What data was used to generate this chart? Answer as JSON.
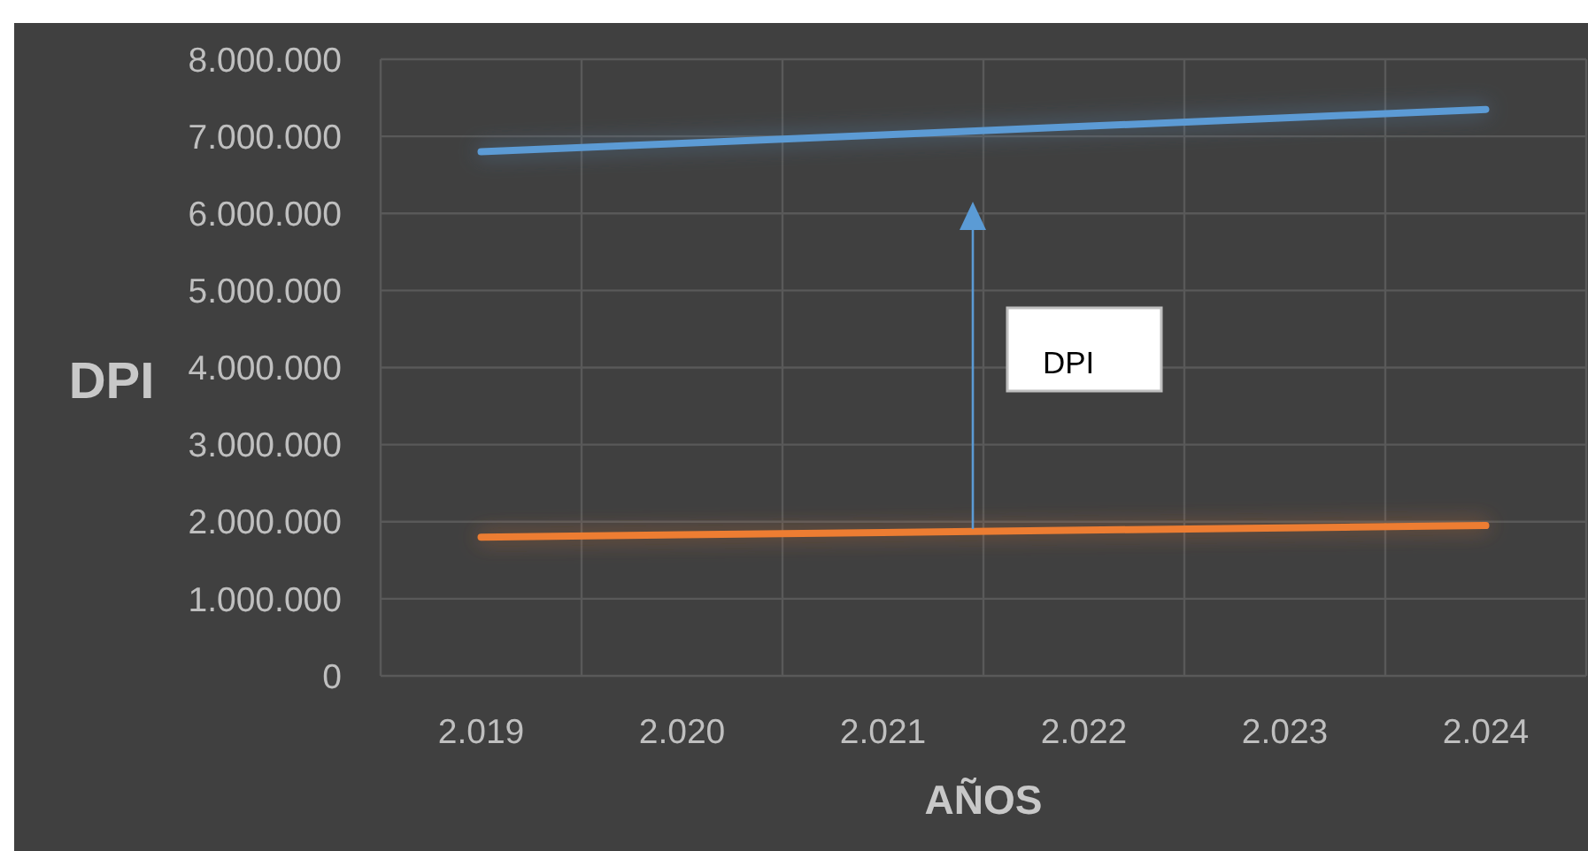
{
  "chart_data": {
    "type": "line",
    "xlabel": "AÑOS",
    "ylabel": "DPI",
    "categories": [
      "2.019",
      "2.020",
      "2.021",
      "2.022",
      "2.023",
      "2.024"
    ],
    "series": [
      {
        "color": "#5b9bd5",
        "values": [
          6800000,
          6910000,
          7020000,
          7130000,
          7240000,
          7350000
        ]
      },
      {
        "color": "#ed7d31",
        "values": [
          1800000,
          1830000,
          1860000,
          1890000,
          1920000,
          1950000
        ]
      }
    ],
    "ylim": [
      0,
      8000000
    ],
    "yticks": [
      0,
      {
        "value": 1000000,
        "label": "1.000.000"
      },
      {
        "value": 2000000,
        "label": "2.000.000"
      },
      {
        "value": 3000000,
        "label": "3.000.000"
      },
      {
        "value": 4000000,
        "label": "4.000.000"
      },
      {
        "value": 5000000,
        "label": "5.000.000"
      },
      {
        "value": 6000000,
        "label": "6.000.000"
      },
      {
        "value": 7000000,
        "label": "7.000.000"
      },
      {
        "value": 8000000,
        "label": "8.000.000"
      }
    ],
    "grid": true,
    "marker": "none",
    "line_style": "solid",
    "annotations": [
      "DPI"
    ]
  }
}
